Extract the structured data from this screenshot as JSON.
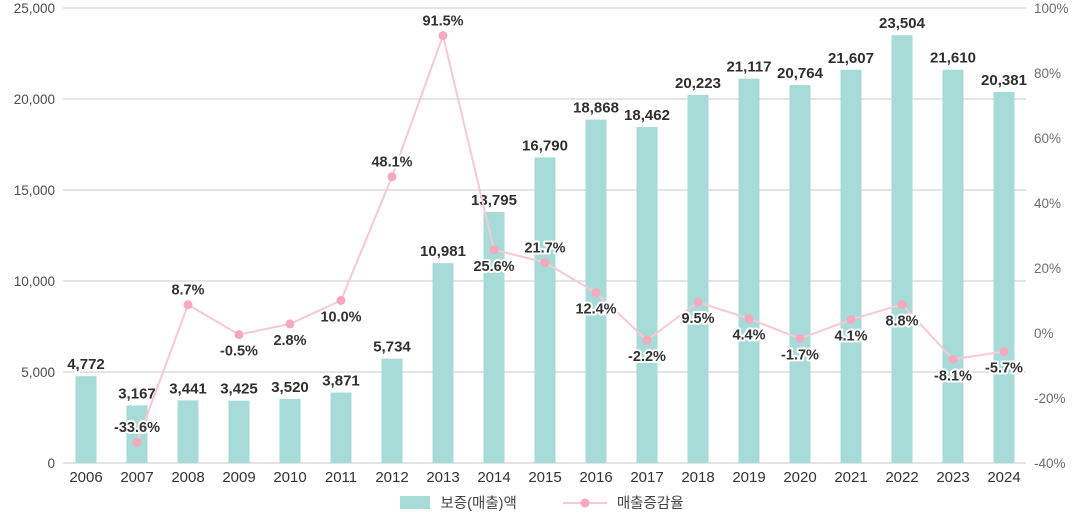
{
  "chart_data": {
    "type": "combo",
    "categories": [
      "2006",
      "2007",
      "2008",
      "2009",
      "2010",
      "2011",
      "2012",
      "2013",
      "2014",
      "2015",
      "2016",
      "2017",
      "2018",
      "2019",
      "2020",
      "2021",
      "2022",
      "2023",
      "2024"
    ],
    "series": [
      {
        "name": "보증(매출)액",
        "type": "bar",
        "values": [
          4772,
          3167,
          3441,
          3425,
          3520,
          3871,
          5734,
          10981,
          13795,
          16790,
          18868,
          18462,
          20223,
          21117,
          20764,
          21607,
          23504,
          21610,
          20381
        ],
        "labels": [
          "4,772",
          "3,167",
          "3,441",
          "3,425",
          "3,520",
          "3,871",
          "5,734",
          "10,981",
          "13,795",
          "16,790",
          "18,868",
          "18,462",
          "20,223",
          "21,117",
          "20,764",
          "21,607",
          "23,504",
          "21,610",
          "20,381"
        ]
      },
      {
        "name": "매출증감율",
        "type": "line",
        "values": [
          null,
          -33.6,
          8.7,
          -0.5,
          2.8,
          10.0,
          48.1,
          91.5,
          25.6,
          21.7,
          12.4,
          -2.2,
          9.5,
          4.4,
          -1.7,
          4.1,
          8.8,
          -8.1,
          -5.7
        ],
        "labels": [
          "",
          "-33.6%",
          "8.7%",
          "-0.5%",
          "2.8%",
          "10.0%",
          "48.1%",
          "91.5%",
          "25.6%",
          "21.7%",
          "12.4%",
          "-2.2%",
          "9.5%",
          "4.4%",
          "-1.7%",
          "4.1%",
          "8.8%",
          "-8.1%",
          "-5.7%"
        ],
        "label_pos": [
          "",
          "above",
          "above",
          "below",
          "below",
          "below",
          "above",
          "above",
          "below",
          "above",
          "below",
          "below",
          "below",
          "below",
          "below",
          "below",
          "below",
          "below",
          "below"
        ]
      }
    ],
    "left_axis": {
      "min": 0,
      "max": 25000,
      "step": 5000,
      "ticks": [
        "0",
        "5,000",
        "10,000",
        "15,000",
        "20,000",
        "25,000"
      ]
    },
    "right_axis": {
      "min": -40,
      "max": 100,
      "step": 20,
      "ticks": [
        "-40%",
        "-20%",
        "0%",
        "20%",
        "40%",
        "60%",
        "80%",
        "100%"
      ]
    },
    "grid": true,
    "legend_position": "bottom-center",
    "colors": {
      "bar": "#a6dbd7",
      "line": "#f8c8d3",
      "marker": "#f4aabc",
      "grid": "#c8c8c8",
      "value_label": "#2f2f2f",
      "pct_label": "#333333",
      "left_tick": "#4d4d4d",
      "right_tick": "#6e6e6e",
      "year_label": "#333333",
      "legend_text": "#444444"
    }
  }
}
